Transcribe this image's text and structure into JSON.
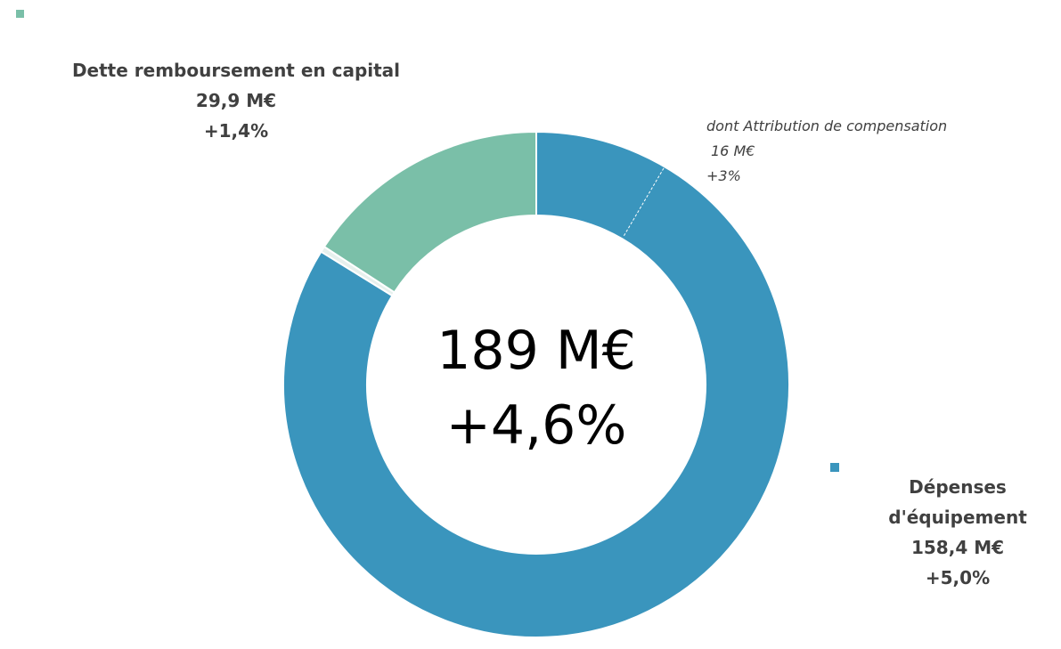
{
  "chart_data": {
    "type": "donut",
    "categories": [
      "Dépenses d'équipement",
      null,
      "Dette remboursement en capital"
    ],
    "values": [
      158.4,
      0.7,
      29.9
    ],
    "value_labels": [
      "158,4 M€",
      null,
      "29,9 M€"
    ],
    "changes": [
      "+5,0%",
      null,
      "+1,4%"
    ],
    "colors": [
      "#3a95bd",
      "#e6f0ed",
      "#7abfa8"
    ],
    "center": {
      "total": "189 M€",
      "change": "+4,6%"
    },
    "annotation": {
      "text": "dont Attribution de compensation",
      "value": 16,
      "label": "16 M€",
      "change": "+3%"
    }
  }
}
